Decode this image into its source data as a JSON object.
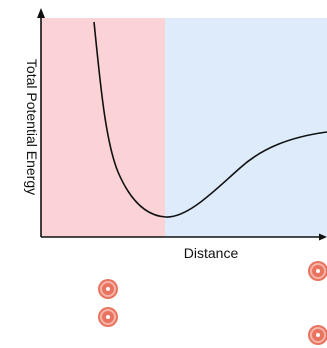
{
  "diagram": {
    "y_axis_label": "Total Potential Energy",
    "x_axis_label": "Distance",
    "regions": [
      {
        "name": "repulsion-region",
        "color": "#fbd3d6"
      },
      {
        "name": "attraction-region",
        "color": "#ddebfb"
      }
    ],
    "curve_color": "#111111",
    "atom_color": "#e8735f",
    "atom_nucleus_color": "#ffffff"
  }
}
